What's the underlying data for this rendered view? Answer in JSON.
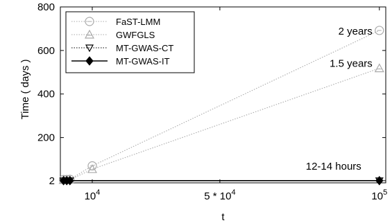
{
  "chart_data": {
    "type": "line",
    "xlabel": "t",
    "ylabel": "Time ( days )",
    "xlim": [
      0,
      102000
    ],
    "ylim": [
      -8,
      800
    ],
    "x_ticks": [
      {
        "value": 10000,
        "base": "10",
        "exp": "4"
      },
      {
        "value": 50000,
        "base": "5 * 10",
        "exp": "4"
      },
      {
        "value": 100000,
        "base": "10",
        "exp": "5"
      }
    ],
    "y_ticks": [
      2,
      200,
      400,
      600,
      800
    ],
    "grid": false,
    "legend_position": "top-left",
    "series": [
      {
        "name": "FaST-LMM",
        "marker": "circle",
        "color": "#aaaaaa",
        "line_style": "dotted",
        "x": [
          1000,
          2000,
          3000,
          10000,
          100000
        ],
        "y": [
          7,
          7,
          8,
          70,
          692
        ]
      },
      {
        "name": "GWFGLS",
        "marker": "triangle-up",
        "color": "#aaaaaa",
        "line_style": "dotted",
        "x": [
          1000,
          2000,
          3000,
          10000,
          100000
        ],
        "y": [
          5,
          5,
          6,
          55,
          518
        ]
      },
      {
        "name": "MT-GWAS-CT",
        "marker": "triangle-down",
        "color": "#000000",
        "line_style": "dotted",
        "x": [
          1000,
          2000,
          3000,
          100000
        ],
        "y": [
          2,
          2,
          2,
          2
        ]
      },
      {
        "name": "MT-GWAS-IT",
        "marker": "diamond",
        "color": "#000000",
        "line_style": "solid",
        "x": [
          1000,
          2000,
          3000,
          100000
        ],
        "y": [
          2,
          2,
          2,
          2
        ]
      }
    ],
    "annotations": [
      {
        "text": "2 years",
        "x": 100000,
        "y": 692
      },
      {
        "text": "1.5 years",
        "x": 100000,
        "y": 518
      },
      {
        "text": "12-14 hours",
        "x": 100000,
        "y": 2
      }
    ]
  }
}
